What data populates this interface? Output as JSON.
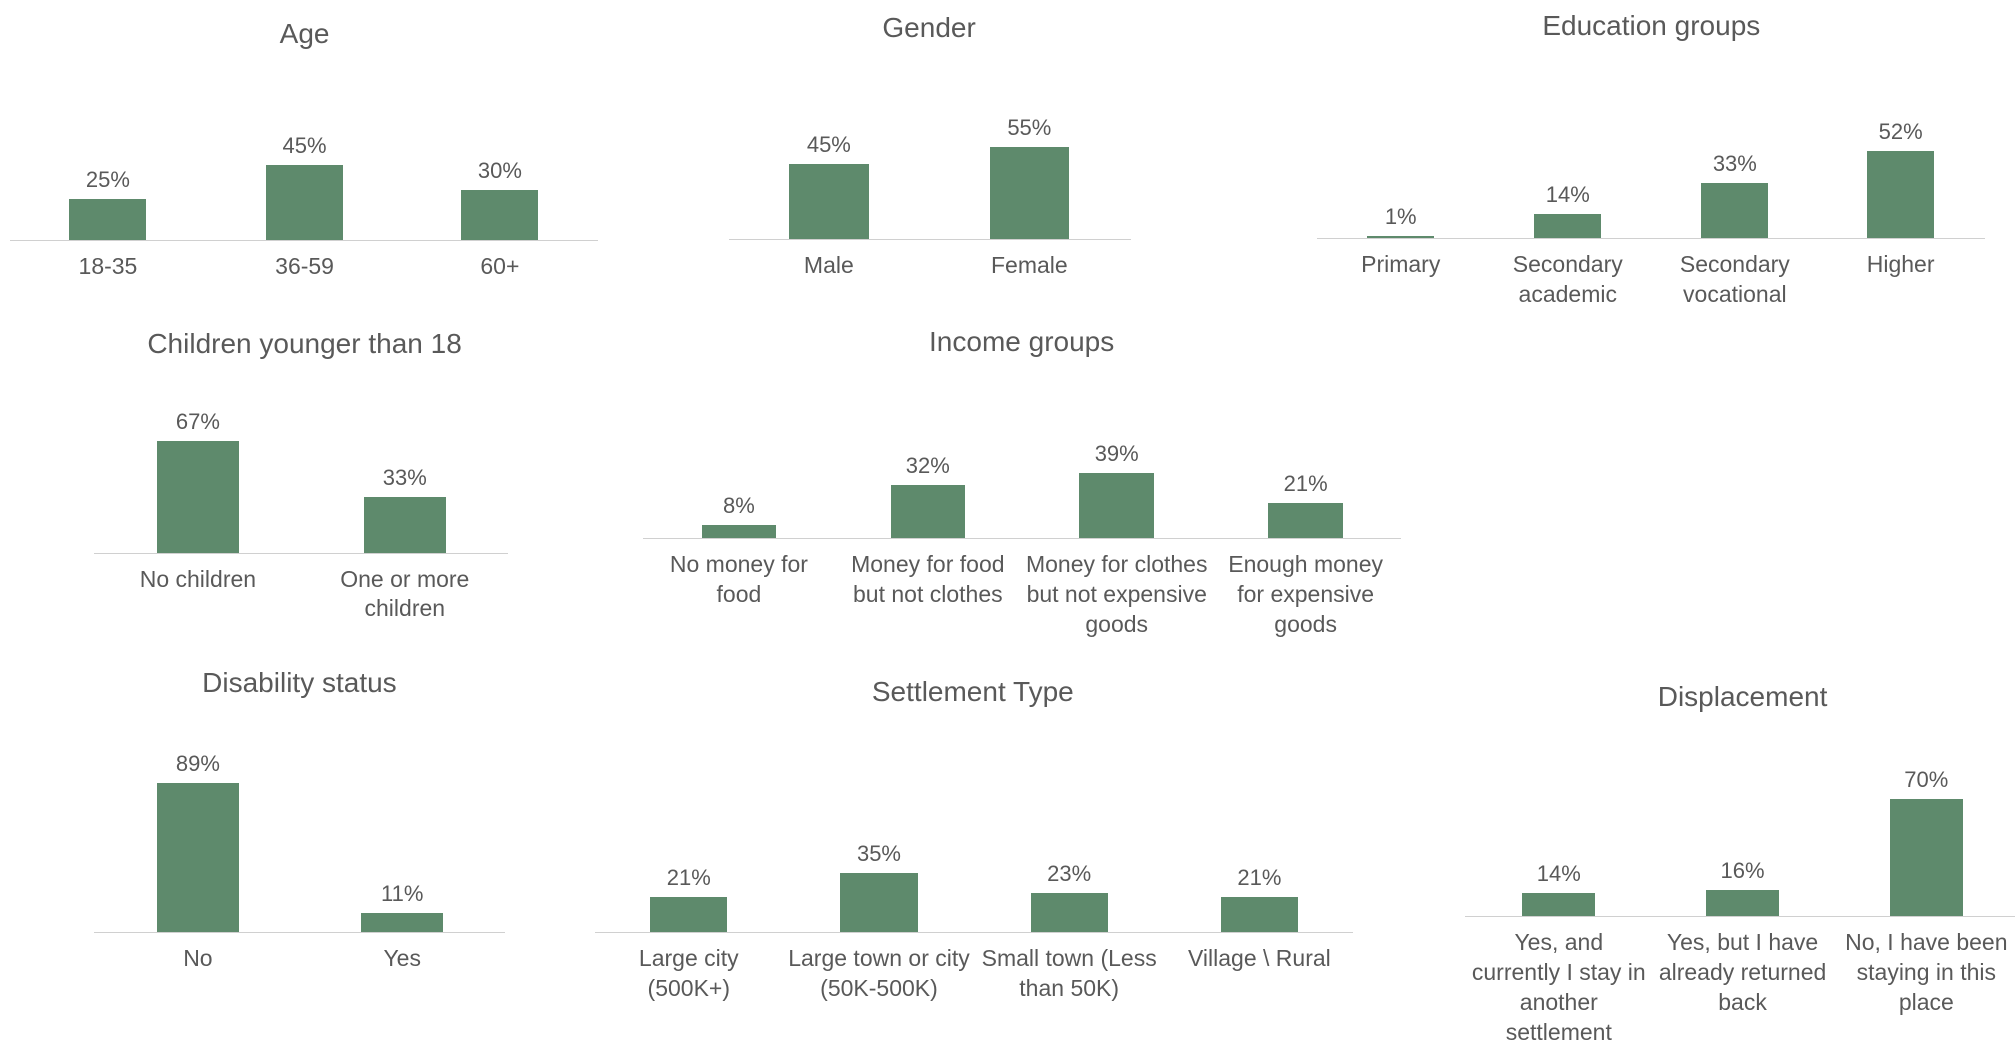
{
  "chart_data": [
    {
      "type": "bar",
      "title": "Age",
      "categories": [
        "18-35",
        "36-59",
        "60+"
      ],
      "values": [
        25,
        45,
        30
      ],
      "value_labels": [
        "25%",
        "45%",
        "30%"
      ],
      "color": "#5e8a6c"
    },
    {
      "type": "bar",
      "title": "Gender",
      "categories": [
        "Male",
        "Female"
      ],
      "values": [
        45,
        55
      ],
      "value_labels": [
        "45%",
        "55%"
      ],
      "color": "#5e8a6c"
    },
    {
      "type": "bar",
      "title": "Education groups",
      "categories": [
        "Primary",
        "Secondary academic",
        "Secondary vocational",
        "Higher"
      ],
      "values": [
        1,
        14,
        33,
        52
      ],
      "value_labels": [
        "1%",
        "14%",
        "33%",
        "52%"
      ],
      "color": "#5e8a6c"
    },
    {
      "type": "bar",
      "title": "Children younger than 18",
      "categories": [
        "No children",
        "One or more children"
      ],
      "values": [
        67,
        33
      ],
      "value_labels": [
        "67%",
        "33%"
      ],
      "color": "#5e8a6c"
    },
    {
      "type": "bar",
      "title": "Income groups",
      "categories": [
        "No money for food",
        "Money for food but not clothes",
        "Money for clothes but not expensive goods",
        "Enough money for expensive goods"
      ],
      "values": [
        8,
        32,
        39,
        21
      ],
      "value_labels": [
        "8%",
        "32%",
        "39%",
        "21%"
      ],
      "color": "#5e8a6c"
    },
    {
      "type": "bar",
      "title": "Disability status",
      "categories": [
        "No",
        "Yes"
      ],
      "values": [
        89,
        11
      ],
      "value_labels": [
        "89%",
        "11%"
      ],
      "color": "#5e8a6c"
    },
    {
      "type": "bar",
      "title": "Settlement Type",
      "categories": [
        "Large city (500K+)",
        "Large town or city (50K-500K)",
        "Small town (Less than 50K)",
        "Village \\ Rural"
      ],
      "values": [
        21,
        35,
        23,
        21
      ],
      "value_labels": [
        "21%",
        "35%",
        "23%",
        "21%"
      ],
      "color": "#5e8a6c"
    },
    {
      "type": "bar",
      "title": "Displacement",
      "categories": [
        "Yes, and currently I stay in another settlement",
        "Yes, but I have already returned back",
        "No, I have been staying in this place"
      ],
      "values": [
        14,
        16,
        70
      ],
      "value_labels": [
        "14%",
        "16%",
        "70%"
      ],
      "color": "#5e8a6c"
    }
  ]
}
